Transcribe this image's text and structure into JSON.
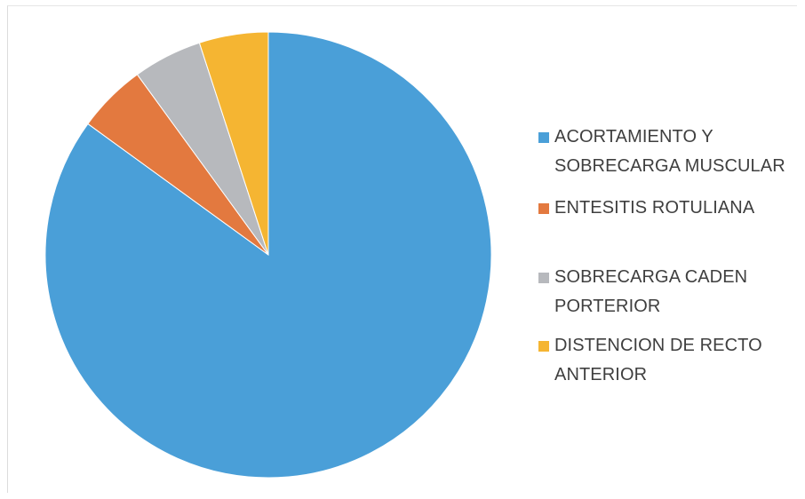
{
  "chart_data": {
    "type": "pie",
    "title": "",
    "series": [
      {
        "slices": [
          {
            "label": "ACORTAMIENTO Y\nSOBRECARGA MUSCULAR",
            "value": 85,
            "color": "#4a9fd8"
          },
          {
            "label": "ENTESITIS ROTULIANA",
            "value": 5,
            "color": "#e3793f"
          },
          {
            "label": "SOBRECARGA CADEN\nPORTERIOR",
            "value": 5,
            "color": "#b7b9bd"
          },
          {
            "label": "DISTENCION DE RECTO\nANTERIOR",
            "value": 5,
            "color": "#f5b532"
          }
        ]
      }
    ],
    "start_angle": "12 o'clock",
    "direction": "clockwise",
    "legend": {
      "position": "right"
    },
    "data_labels": false
  }
}
